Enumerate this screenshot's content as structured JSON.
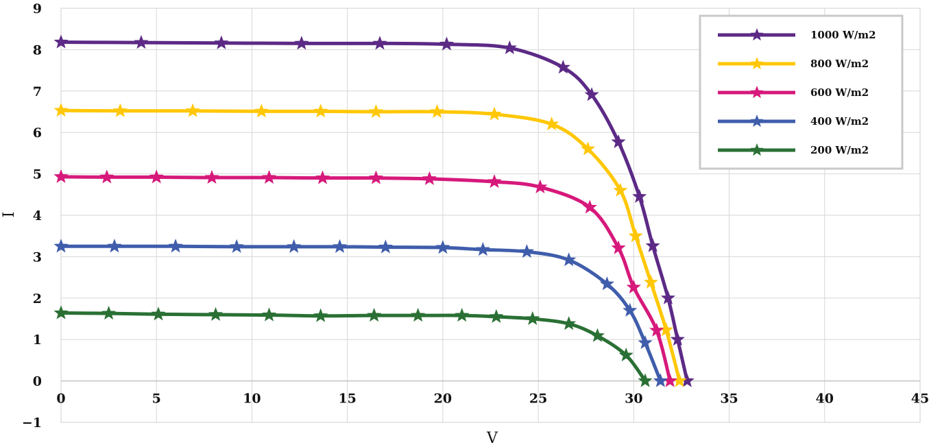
{
  "chart_data": {
    "type": "line",
    "title": "",
    "xlabel": "V",
    "ylabel": "I",
    "xlim": [
      0,
      45
    ],
    "ylim": [
      -1,
      9
    ],
    "x_ticks": [
      0,
      5,
      10,
      15,
      20,
      25,
      30,
      35,
      40,
      45
    ],
    "y_ticks": [
      -1,
      0,
      1,
      2,
      3,
      4,
      5,
      6,
      7,
      8,
      9
    ],
    "x_tick_labels": [
      "0",
      "5",
      "10",
      "15",
      "20",
      "25",
      "30",
      "35",
      "40",
      "45"
    ],
    "y_tick_labels": [
      "−1",
      "0",
      "1",
      "2",
      "3",
      "4",
      "5",
      "6",
      "7",
      "8",
      "9"
    ],
    "grid": true,
    "legend_position": "top-right",
    "marker": "star",
    "series": [
      {
        "name": "1000 W/m2",
        "color": "#5C2A86",
        "points": [
          [
            0,
            8.18
          ],
          [
            4.2,
            8.17
          ],
          [
            8.4,
            8.16
          ],
          [
            12.6,
            8.15
          ],
          [
            16.7,
            8.15
          ],
          [
            20.2,
            8.13
          ],
          [
            23.5,
            8.04
          ],
          [
            26.3,
            7.57
          ],
          [
            27.8,
            6.91
          ],
          [
            29.2,
            5.77
          ],
          [
            30.3,
            4.45
          ],
          [
            31.0,
            3.26
          ],
          [
            31.8,
            2.0
          ],
          [
            32.3,
            1.0
          ],
          [
            32.8,
            0.0
          ]
        ]
      },
      {
        "name": "800 W/m2",
        "color": "#FFC708",
        "points": [
          [
            0,
            6.53
          ],
          [
            3.1,
            6.52
          ],
          [
            6.9,
            6.52
          ],
          [
            10.5,
            6.51
          ],
          [
            13.6,
            6.51
          ],
          [
            16.5,
            6.5
          ],
          [
            19.7,
            6.5
          ],
          [
            22.7,
            6.44
          ],
          [
            25.7,
            6.2
          ],
          [
            27.6,
            5.6
          ],
          [
            29.3,
            4.6
          ],
          [
            30.1,
            3.5
          ],
          [
            30.9,
            2.38
          ],
          [
            31.7,
            1.23
          ],
          [
            32.4,
            0.0
          ]
        ]
      },
      {
        "name": "600 W/m2",
        "color": "#D6197B",
        "points": [
          [
            0,
            4.93
          ],
          [
            2.4,
            4.92
          ],
          [
            5.0,
            4.92
          ],
          [
            7.9,
            4.91
          ],
          [
            10.9,
            4.91
          ],
          [
            13.7,
            4.9
          ],
          [
            16.5,
            4.9
          ],
          [
            19.3,
            4.88
          ],
          [
            22.7,
            4.81
          ],
          [
            25.1,
            4.68
          ],
          [
            27.7,
            4.19
          ],
          [
            29.2,
            3.21
          ],
          [
            30.0,
            2.26
          ],
          [
            31.2,
            1.22
          ],
          [
            31.9,
            0.0
          ]
        ]
      },
      {
        "name": "400 W/m2",
        "color": "#3F5DAB",
        "points": [
          [
            0,
            3.25
          ],
          [
            2.8,
            3.25
          ],
          [
            6.0,
            3.25
          ],
          [
            9.2,
            3.24
          ],
          [
            12.2,
            3.24
          ],
          [
            14.6,
            3.24
          ],
          [
            17.0,
            3.23
          ],
          [
            20.0,
            3.22
          ],
          [
            22.1,
            3.17
          ],
          [
            24.4,
            3.12
          ],
          [
            26.6,
            2.92
          ],
          [
            28.6,
            2.34
          ],
          [
            29.8,
            1.7
          ],
          [
            30.6,
            0.92
          ],
          [
            31.4,
            0.0
          ]
        ]
      },
      {
        "name": "200 W/m2",
        "color": "#2A7034",
        "points": [
          [
            0,
            1.64
          ],
          [
            2.5,
            1.63
          ],
          [
            5.1,
            1.61
          ],
          [
            8.1,
            1.6
          ],
          [
            10.9,
            1.59
          ],
          [
            13.6,
            1.57
          ],
          [
            16.4,
            1.58
          ],
          [
            18.7,
            1.58
          ],
          [
            21.0,
            1.58
          ],
          [
            22.8,
            1.55
          ],
          [
            24.7,
            1.5
          ],
          [
            26.6,
            1.38
          ],
          [
            28.1,
            1.09
          ],
          [
            29.6,
            0.62
          ],
          [
            30.6,
            0.0
          ]
        ]
      }
    ]
  }
}
